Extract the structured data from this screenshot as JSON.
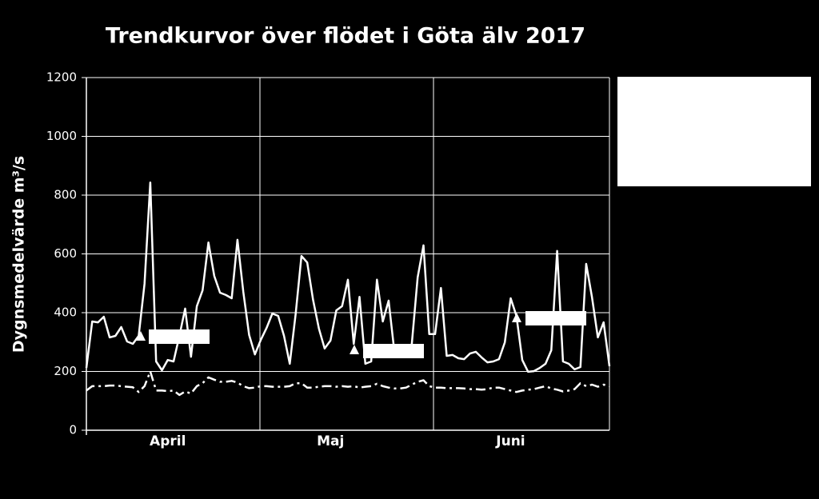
{
  "chart_data": {
    "type": "line",
    "title": "Trendkurvor över flödet i Göta älv 2017",
    "y_label": "Dygnsmedelvärde m³/s",
    "categories": [
      null,
      null,
      null,
      null,
      null,
      null,
      null,
      null,
      null,
      null,
      null,
      null,
      null,
      null,
      "April",
      null,
      null,
      null,
      null,
      null,
      null,
      null,
      null,
      null,
      null,
      null,
      null,
      null,
      null,
      null,
      null,
      null,
      null,
      null,
      null,
      null,
      null,
      null,
      null,
      null,
      null,
      null,
      "Maj",
      null,
      null,
      null,
      null,
      null,
      null,
      null,
      null,
      null,
      null,
      null,
      null,
      null,
      null,
      null,
      null,
      null,
      null,
      null,
      null,
      null,
      null,
      null,
      null,
      null,
      null,
      null,
      null,
      null,
      null,
      "Juni",
      null,
      null,
      null,
      null,
      null,
      null,
      null,
      null,
      null,
      null,
      null,
      null,
      null,
      null,
      null,
      null,
      null
    ],
    "series": [
      {
        "color": "#ffffff",
        "style": "solid",
        "values": [
          212,
          370,
          367,
          386,
          316,
          321,
          351,
          302,
          294,
          321,
          498,
          843,
          234,
          204,
          239,
          234,
          321,
          414,
          250,
          422,
          476,
          639,
          525,
          468,
          460,
          449,
          648,
          471,
          324,
          258,
          307,
          348,
          397,
          389,
          321,
          226,
          394,
          593,
          571,
          444,
          346,
          278,
          305,
          408,
          422,
          512,
          294,
          454,
          226,
          234,
          512,
          370,
          441,
          267,
          260,
          267,
          294,
          520,
          629,
          327,
          327,
          484,
          253,
          256,
          245,
          242,
          261,
          267,
          248,
          231,
          234,
          242,
          299,
          449,
          389,
          239,
          199,
          201,
          212,
          226,
          272,
          610,
          234,
          226,
          207,
          215,
          566,
          452,
          316,
          367,
          218
        ]
      },
      {
        "color": "#ffffff",
        "style": "dashdot",
        "values": [
          135,
          150,
          150,
          150,
          152,
          152,
          150,
          148,
          146,
          130,
          150,
          200,
          135,
          135,
          133,
          135,
          120,
          132,
          125,
          150,
          160,
          180,
          172,
          165,
          165,
          168,
          162,
          150,
          143,
          145,
          150,
          150,
          148,
          148,
          148,
          150,
          160,
          160,
          145,
          145,
          148,
          150,
          150,
          148,
          150,
          148,
          150,
          145,
          148,
          150,
          158,
          150,
          145,
          142,
          142,
          145,
          155,
          165,
          170,
          150,
          145,
          145,
          143,
          143,
          143,
          142,
          140,
          140,
          138,
          140,
          145,
          145,
          140,
          135,
          130,
          135,
          138,
          140,
          145,
          150,
          142,
          138,
          132,
          135,
          140,
          160,
          150,
          155,
          148,
          155,
          150
        ]
      }
    ],
    "ylim": [
      0,
      1200
    ],
    "yticks": [
      0,
      200,
      400,
      600,
      800,
      1000,
      1200
    ],
    "grid": true
  }
}
